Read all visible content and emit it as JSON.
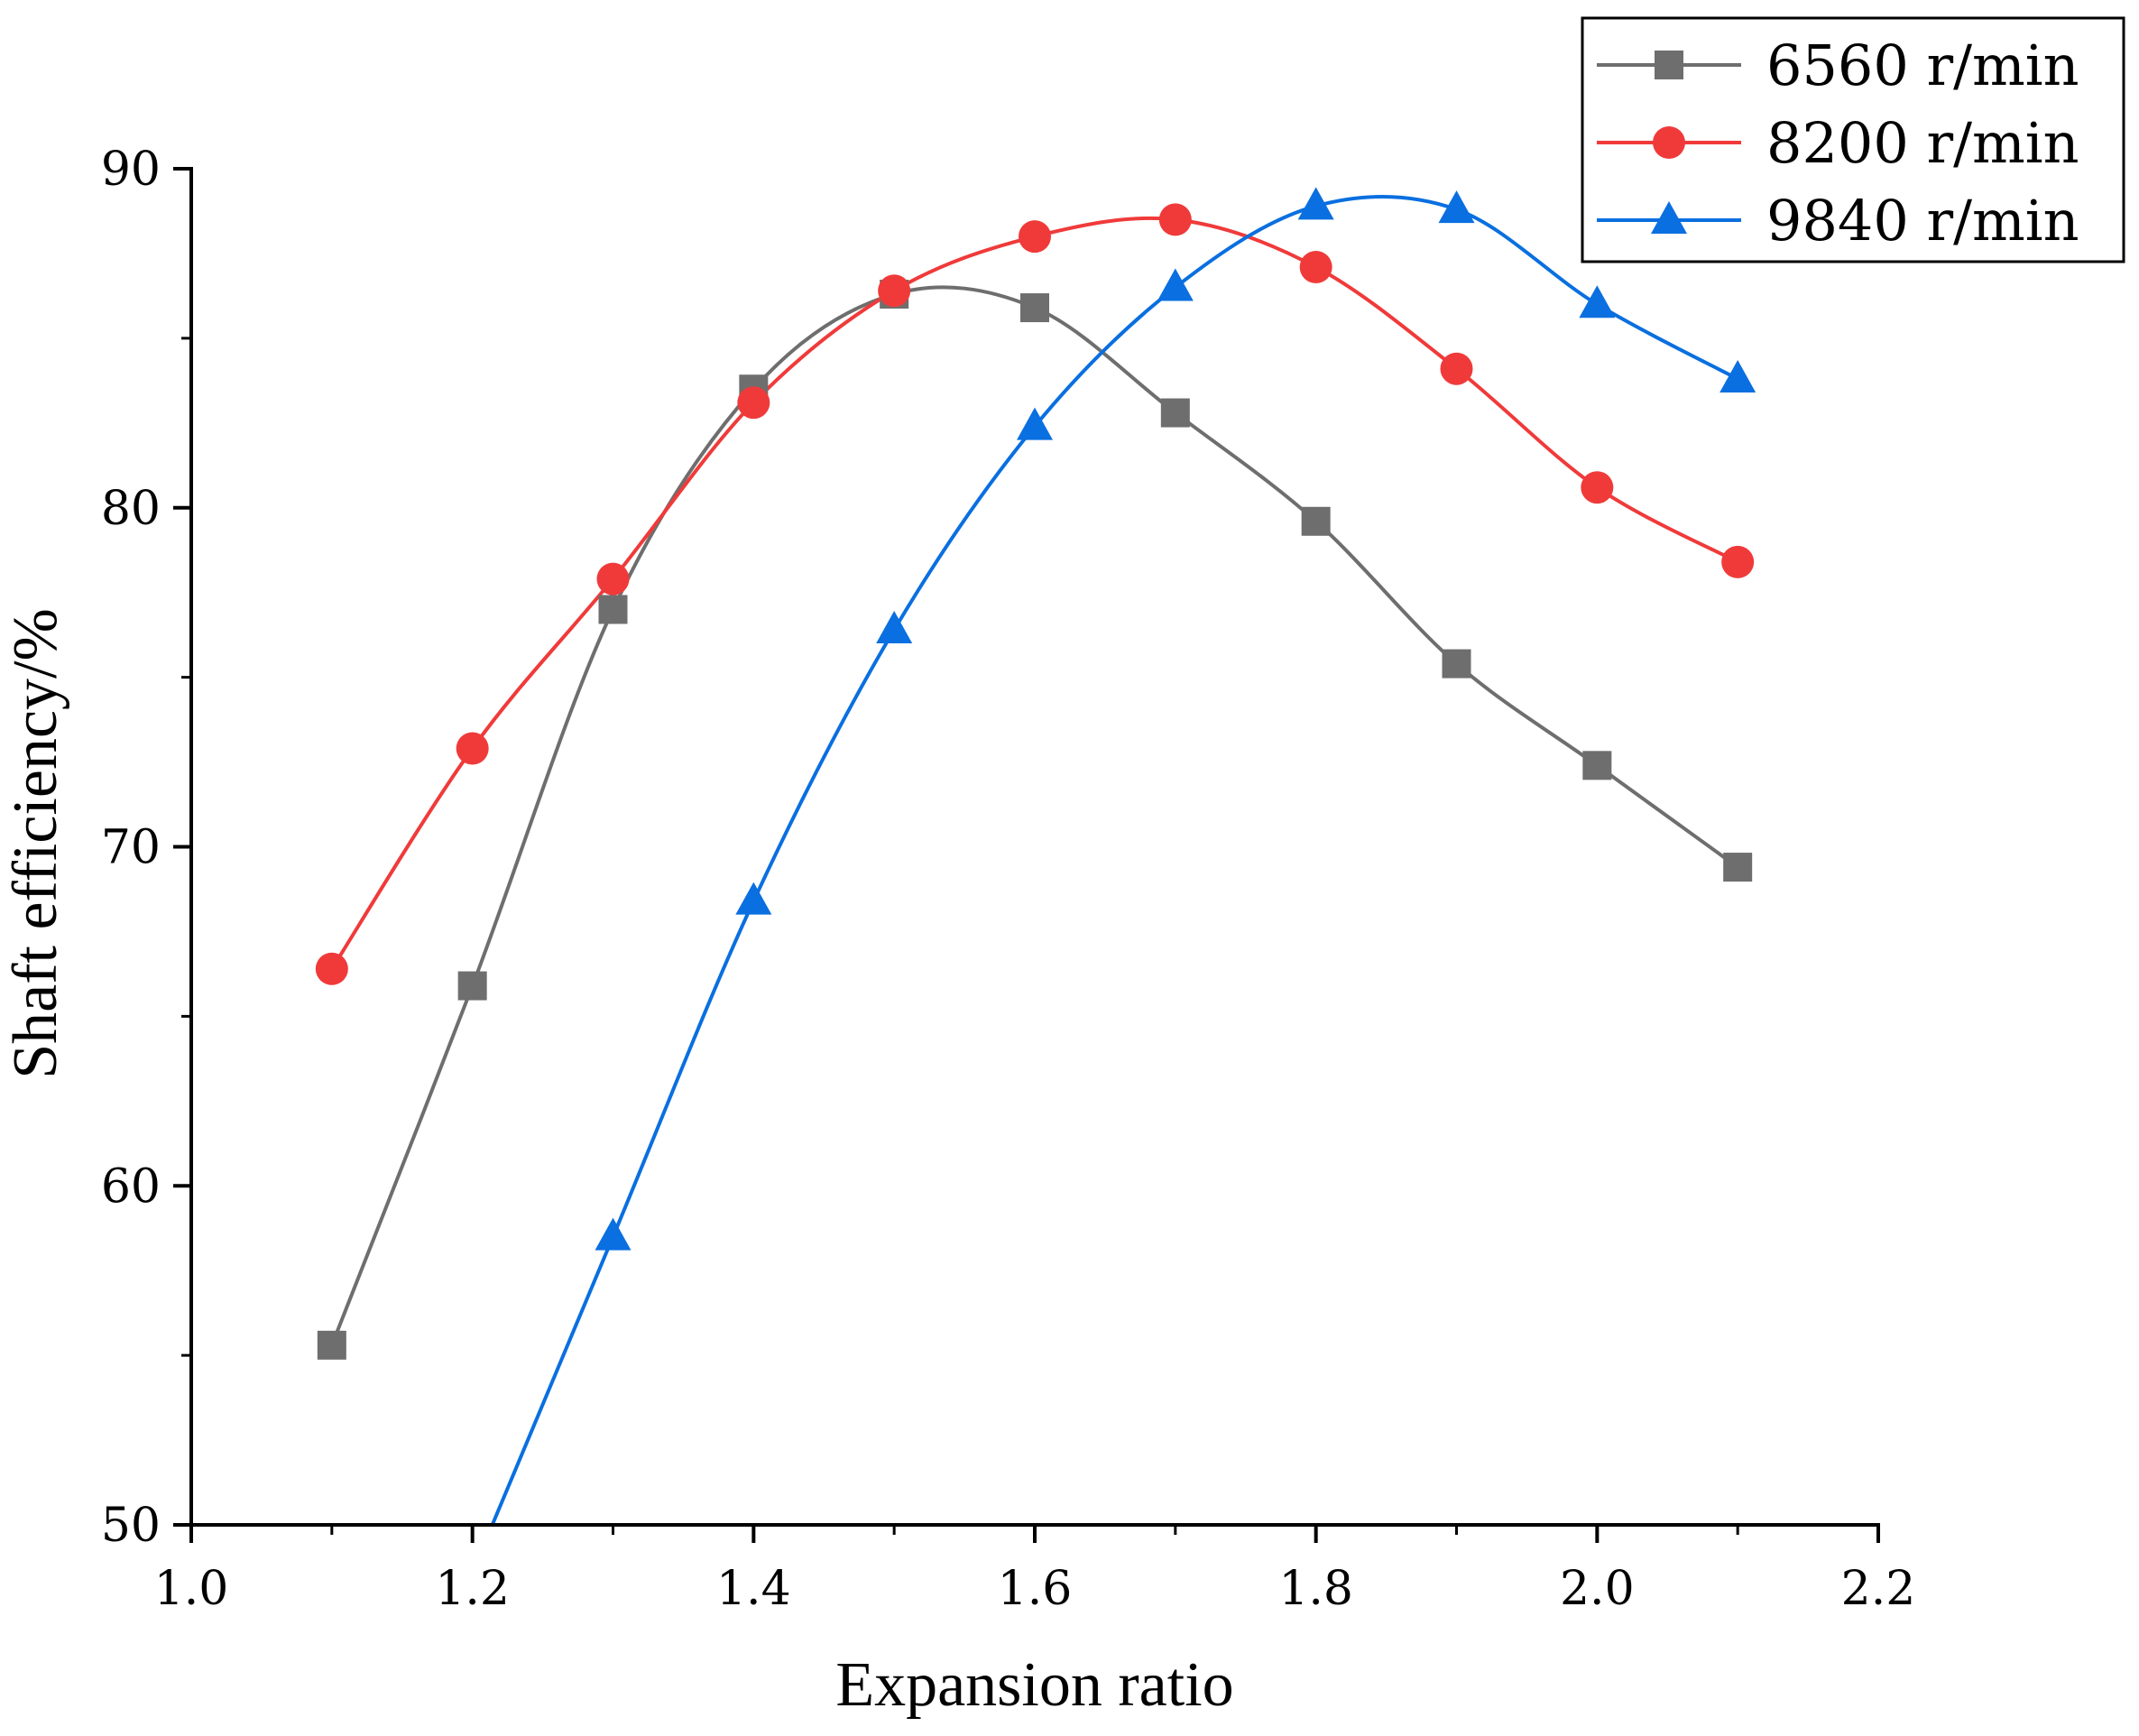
{
  "chart_data": {
    "type": "line",
    "title": "",
    "xlabel": "Expansion ratio",
    "ylabel": "Shaft efficiency/%",
    "xlim": [
      1.0,
      2.2
    ],
    "ylim": [
      50,
      90
    ],
    "xticks": [
      "1.0",
      "1.2",
      "1.4",
      "1.6",
      "1.8",
      "2.0",
      "2.2"
    ],
    "yticks": [
      "50",
      "60",
      "70",
      "80",
      "90"
    ],
    "grid": false,
    "legend_position": "top-right",
    "series": [
      {
        "name": "6560 r/min",
        "color": "#6e6e6e",
        "marker": "square",
        "x": [
          1.1,
          1.2,
          1.3,
          1.4,
          1.5,
          1.6,
          1.7,
          1.8,
          1.9,
          2.0,
          2.1
        ],
        "y": [
          55.3,
          65.9,
          77.0,
          83.5,
          86.3,
          85.9,
          82.8,
          79.6,
          75.4,
          72.4,
          69.4
        ]
      },
      {
        "name": "8200 r/min",
        "color": "#f03a3a",
        "marker": "circle",
        "x": [
          1.1,
          1.2,
          1.3,
          1.4,
          1.5,
          1.6,
          1.7,
          1.8,
          1.9,
          2.0,
          2.1
        ],
        "y": [
          66.4,
          72.9,
          77.9,
          83.1,
          86.4,
          88.0,
          88.5,
          87.1,
          84.1,
          80.6,
          78.4
        ]
      },
      {
        "name": "9840 r/min",
        "color": "#0a6fe0",
        "marker": "triangle",
        "x": [
          1.3,
          1.4,
          1.5,
          1.6,
          1.7,
          1.8,
          1.9,
          2.0,
          2.1
        ],
        "y": [
          58.5,
          68.4,
          76.4,
          82.4,
          86.5,
          88.9,
          88.8,
          86.0,
          83.8
        ]
      }
    ]
  }
}
